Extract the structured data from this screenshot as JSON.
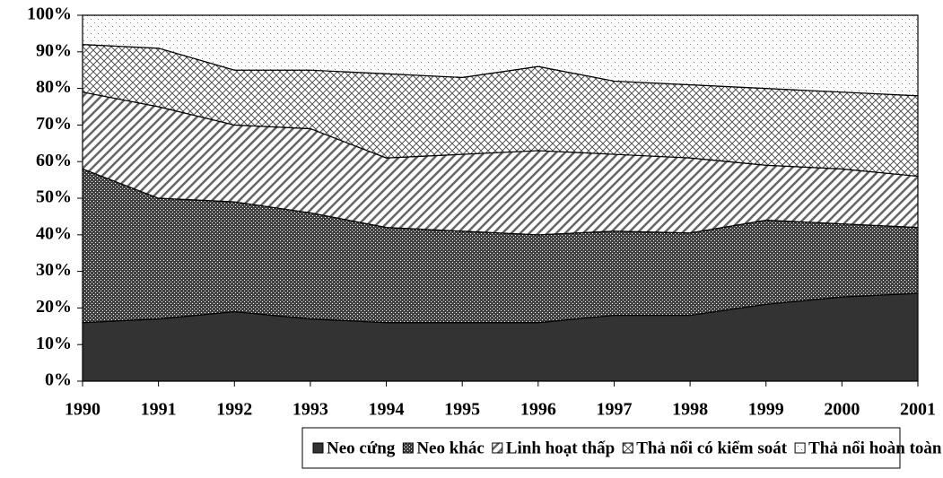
{
  "chart_data": {
    "type": "stacked_area_percent",
    "categories": [
      "1990",
      "1991",
      "1992",
      "1993",
      "1994",
      "1995",
      "1996",
      "1997",
      "1998",
      "1999",
      "2000",
      "2001"
    ],
    "series": [
      {
        "name": "Neo cứng",
        "color": "#333333",
        "values": [
          16,
          17,
          19,
          17,
          16,
          16,
          16,
          18,
          18,
          21,
          23,
          24
        ]
      },
      {
        "name": "Neo khác",
        "color": "#404040",
        "values": [
          42,
          33,
          30,
          29,
          26,
          25,
          24,
          23,
          22.5,
          23,
          20,
          18
        ]
      },
      {
        "name": "Linh hoạt thấp",
        "color": "#666666",
        "values": [
          21,
          25,
          21,
          23,
          19,
          21,
          23,
          21,
          20.5,
          15,
          15,
          14
        ]
      },
      {
        "name": "Thả nổi có kiểm soát",
        "color": "#555555",
        "values": [
          13,
          16,
          15,
          16,
          23,
          21,
          23,
          20,
          20,
          21,
          21,
          22
        ]
      },
      {
        "name": "Thả nổi hoàn toàn",
        "color": "#777777",
        "values": [
          8,
          9,
          15,
          15,
          16,
          17,
          14,
          18,
          19,
          20,
          21,
          22
        ]
      }
    ],
    "ylim": [
      0,
      100
    ],
    "yticks": [
      {
        "value": 0,
        "label": "0%"
      },
      {
        "value": 10,
        "label": "10%"
      },
      {
        "value": 20,
        "label": "20%"
      },
      {
        "value": 30,
        "label": "30%"
      },
      {
        "value": 40,
        "label": "40%"
      },
      {
        "value": 50,
        "label": "50%"
      },
      {
        "value": 60,
        "label": "60%"
      },
      {
        "value": 70,
        "label": "70%"
      },
      {
        "value": 80,
        "label": "80%"
      },
      {
        "value": 90,
        "label": "90%"
      },
      {
        "value": 100,
        "label": "100%"
      }
    ]
  }
}
